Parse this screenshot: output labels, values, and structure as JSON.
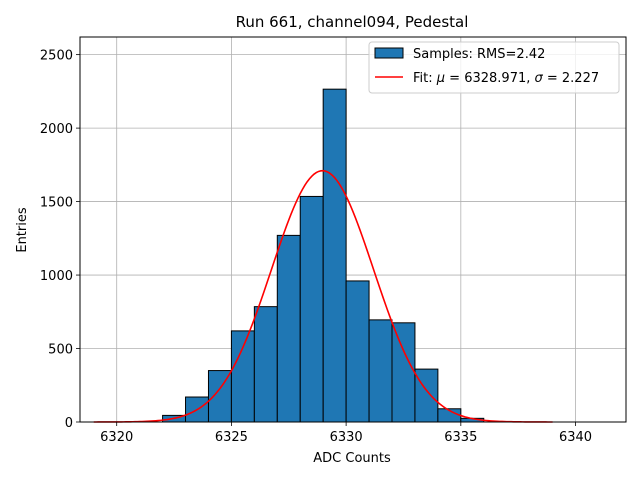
{
  "chart_data": {
    "type": "bar",
    "title": "Run 661, channel094, Pedestal",
    "xlabel": "ADC Counts",
    "ylabel": "Entries",
    "xlim": [
      6318.4,
      6342.2
    ],
    "ylim": [
      0,
      2620
    ],
    "xticks": [
      6320,
      6325,
      6330,
      6335,
      6340
    ],
    "yticks": [
      0,
      500,
      1000,
      1500,
      2000,
      2500
    ],
    "grid": true,
    "legend_position": "top-right",
    "histogram": {
      "name": "Samples: RMS=2.42",
      "color": "#1f77b4",
      "edge_color": "#000000",
      "bin_edges": [
        6319,
        6320,
        6321,
        6322,
        6323,
        6324,
        6325,
        6326,
        6327,
        6328,
        6329,
        6330,
        6331,
        6332,
        6333,
        6334,
        6335,
        6336,
        6337,
        6338,
        6339,
        6340,
        6341
      ],
      "counts": [
        0,
        0,
        0,
        45,
        170,
        350,
        620,
        785,
        1270,
        1535,
        2265,
        960,
        695,
        675,
        360,
        90,
        25,
        0,
        0,
        0,
        0,
        0
      ]
    },
    "fit": {
      "name": "Fit: μ = 6328.971, σ = 2.227",
      "color": "#ff0000",
      "mu": 6328.971,
      "sigma": 2.227,
      "peak": 1710,
      "x_range": [
        6319,
        6339
      ]
    }
  }
}
